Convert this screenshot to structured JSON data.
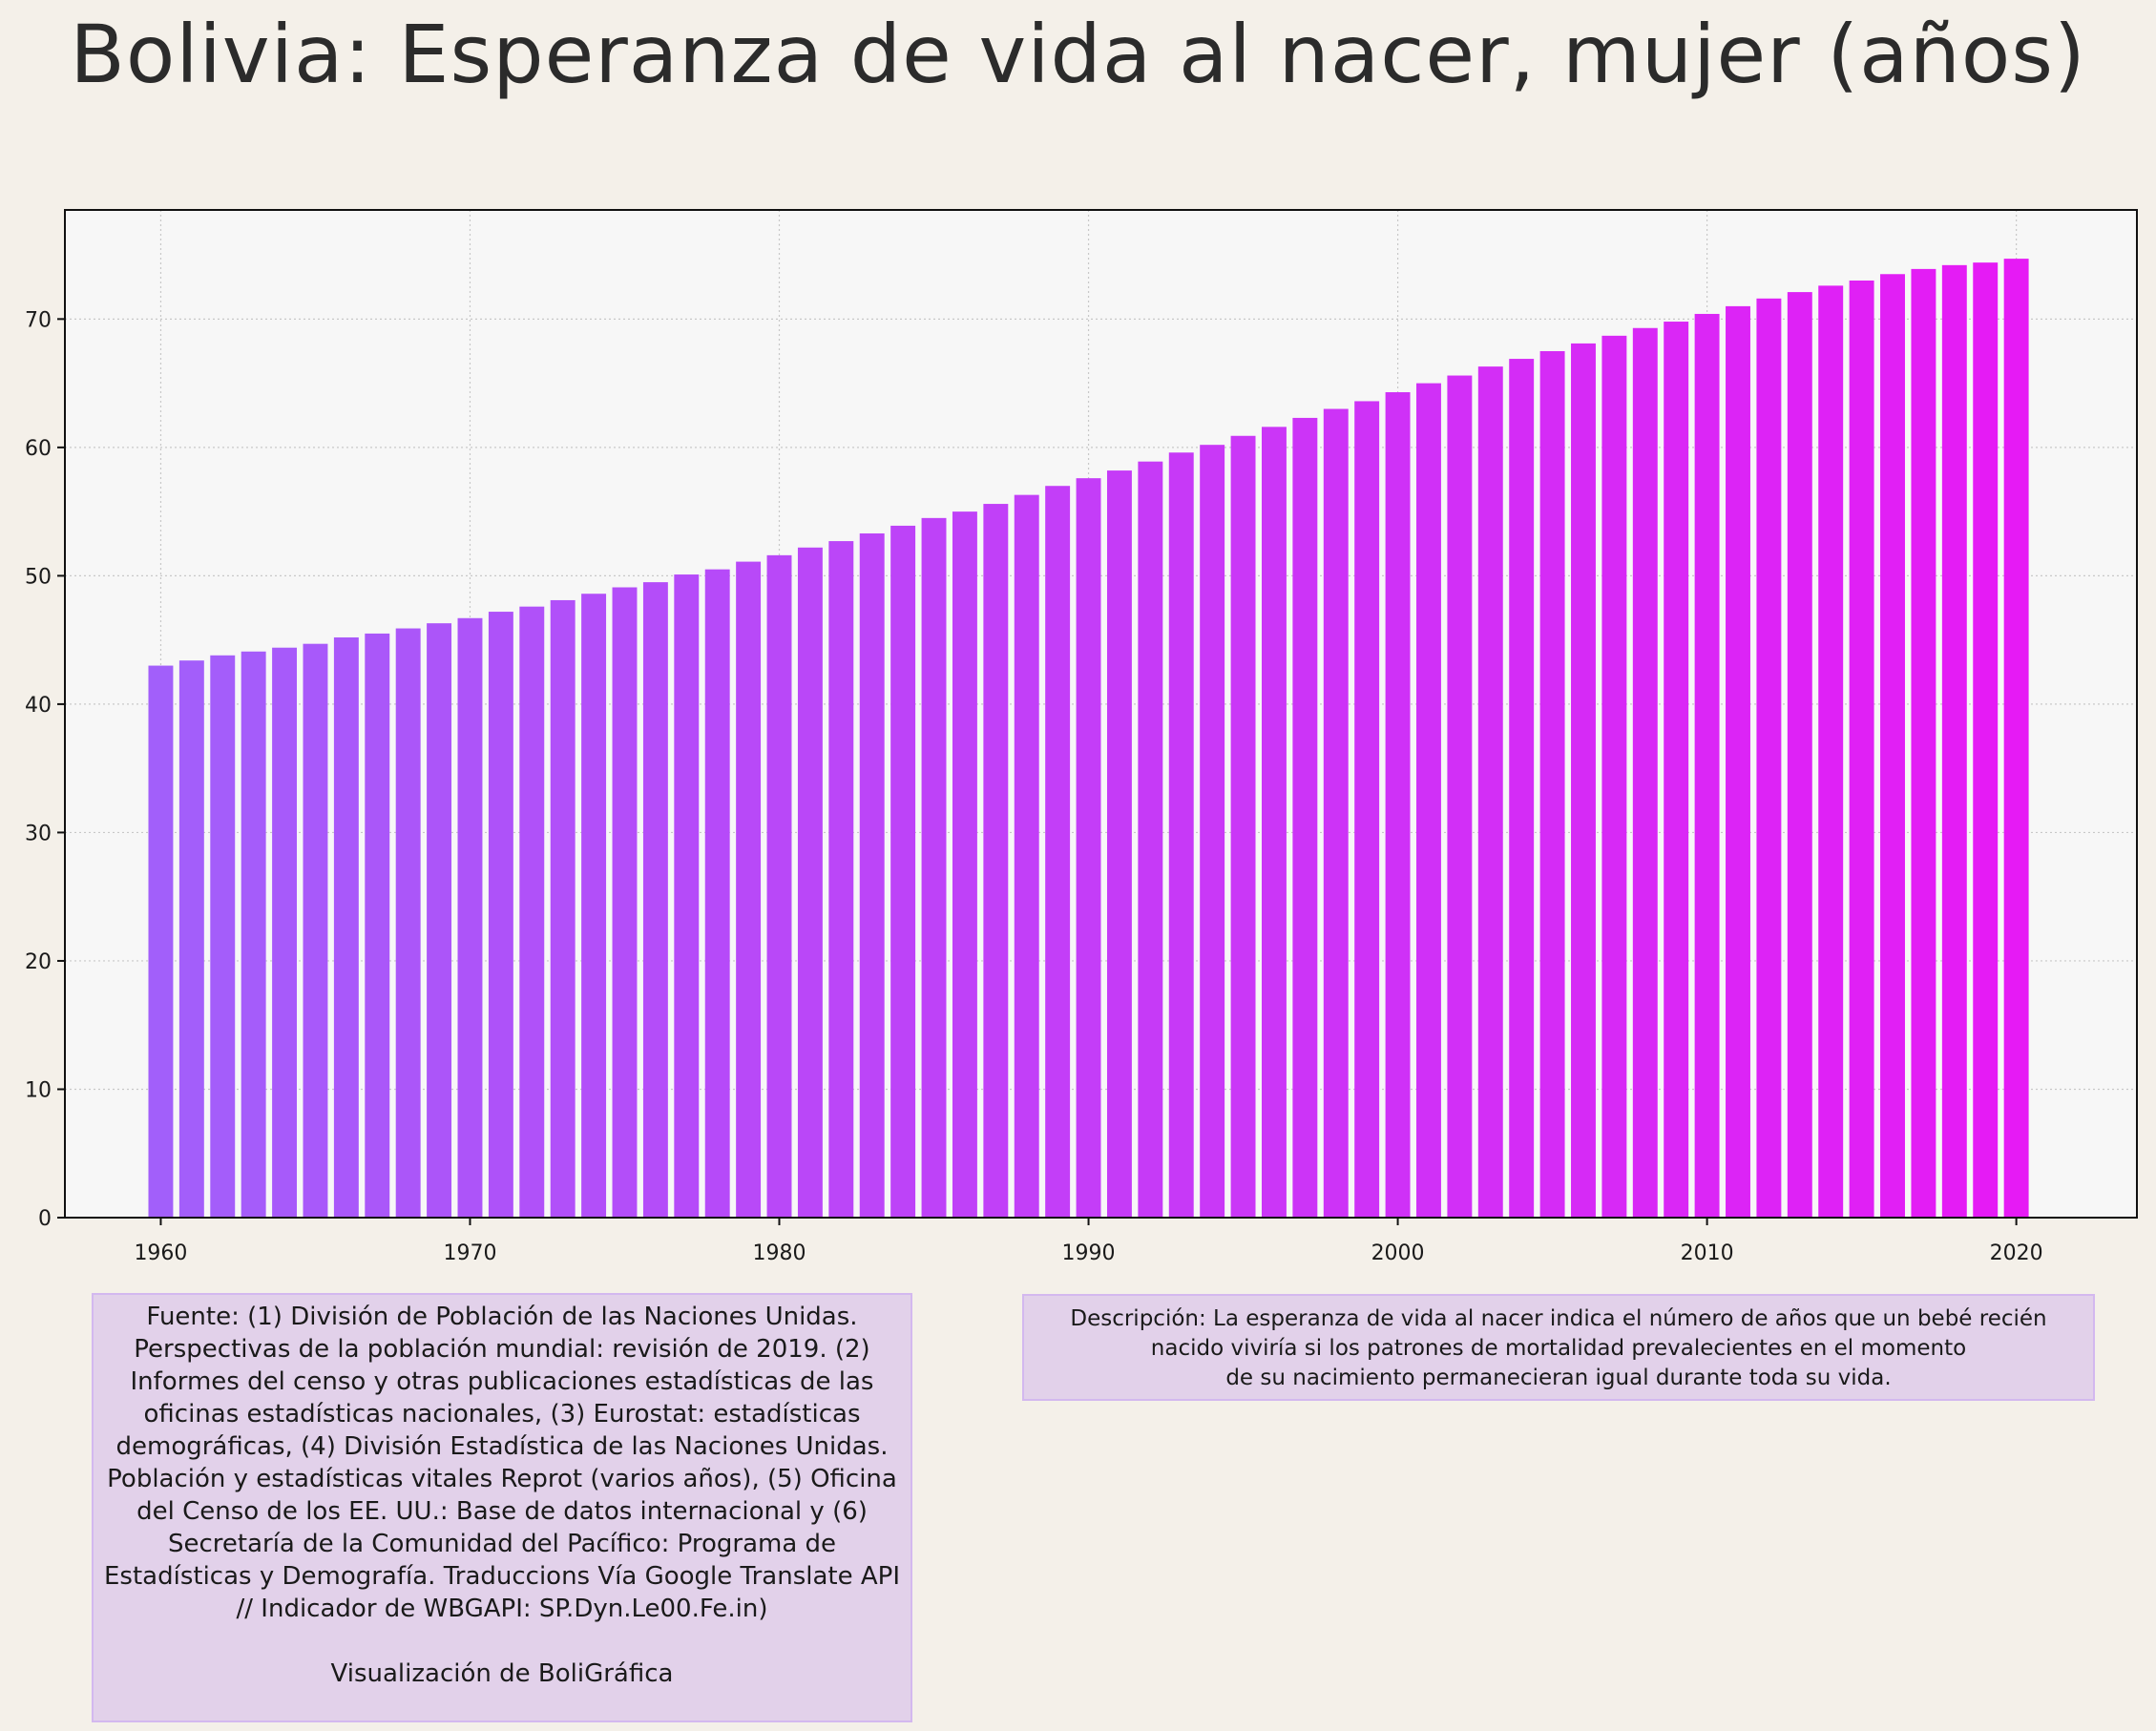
{
  "title": "Bolivia:  Esperanza de vida al nacer, mujer (años)",
  "colors": {
    "background": "#f4f0e9",
    "plot_background": "#f7f7f7",
    "bar_start": "#a25ffa",
    "bar_end": "#e61af5",
    "box_fill": "#e2d1ea",
    "box_border": "#d3b8ef"
  },
  "chart_data": {
    "type": "bar",
    "title": "Bolivia:  Esperanza de vida al nacer, mujer (años)",
    "xlabel": "",
    "ylabel": "",
    "x_ticks": [
      "1960",
      "1970",
      "1980",
      "1990",
      "2000",
      "2010",
      "2020"
    ],
    "y_ticks": [
      "0",
      "10",
      "20",
      "30",
      "40",
      "50",
      "60",
      "70"
    ],
    "xlim": [
      1956.9,
      2023.9
    ],
    "ylim": [
      0,
      78.5
    ],
    "grid": true,
    "legend": "none",
    "x": [
      1960,
      1961,
      1962,
      1963,
      1964,
      1965,
      1966,
      1967,
      1968,
      1969,
      1970,
      1971,
      1972,
      1973,
      1974,
      1975,
      1976,
      1977,
      1978,
      1979,
      1980,
      1981,
      1982,
      1983,
      1984,
      1985,
      1986,
      1987,
      1988,
      1989,
      1990,
      1991,
      1992,
      1993,
      1994,
      1995,
      1996,
      1997,
      1998,
      1999,
      2000,
      2001,
      2002,
      2003,
      2004,
      2005,
      2006,
      2007,
      2008,
      2009,
      2010,
      2011,
      2012,
      2013,
      2014,
      2015,
      2016,
      2017,
      2018,
      2019,
      2020
    ],
    "values": [
      43.0,
      43.4,
      43.8,
      44.1,
      44.4,
      44.7,
      45.2,
      45.5,
      45.9,
      46.3,
      46.7,
      47.2,
      47.6,
      48.1,
      48.6,
      49.1,
      49.5,
      50.1,
      50.5,
      51.1,
      51.6,
      52.2,
      52.7,
      53.3,
      53.9,
      54.5,
      55.0,
      55.6,
      56.3,
      57.0,
      57.6,
      58.2,
      58.9,
      59.6,
      60.2,
      60.9,
      61.6,
      62.3,
      63.0,
      63.6,
      64.3,
      65.0,
      65.6,
      66.3,
      66.9,
      67.5,
      68.1,
      68.7,
      69.3,
      69.8,
      70.4,
      71.0,
      71.6,
      72.1,
      72.6,
      73.0,
      73.5,
      73.9,
      74.2,
      74.4,
      74.7
    ]
  },
  "source_box": {
    "text": "Fuente: (1) División de Población de las Naciones Unidas. Perspectivas de la población mundial: revisión de 2019. (2) Informes del censo y otras publicaciones estadísticas de las oficinas estadísticas nacionales, (3) Eurostat: estadísticas demográficas, (4) División Estadística de las Naciones Unidas. Población y estadísticas vitales Reprot (varios años), (5) Oficina del Censo de los EE. UU.: Base de datos internacional y (6) Secretaría de la Comunidad del Pacífico: Programa de Estadísticas y Demografía. Traduccions Vía Google Translate API // Indicador de WBGAPI: SP.Dyn.Le00.Fe.in)",
    "credit": "Visualización de BoliGráfica"
  },
  "description_box": {
    "lines": [
      "Descripción: La esperanza de vida al nacer indica el número de años que un bebé recién",
      "nacido viviría si los patrones de mortalidad prevalecientes en el momento",
      "de su nacimiento permanecieran igual durante toda su vida."
    ]
  }
}
